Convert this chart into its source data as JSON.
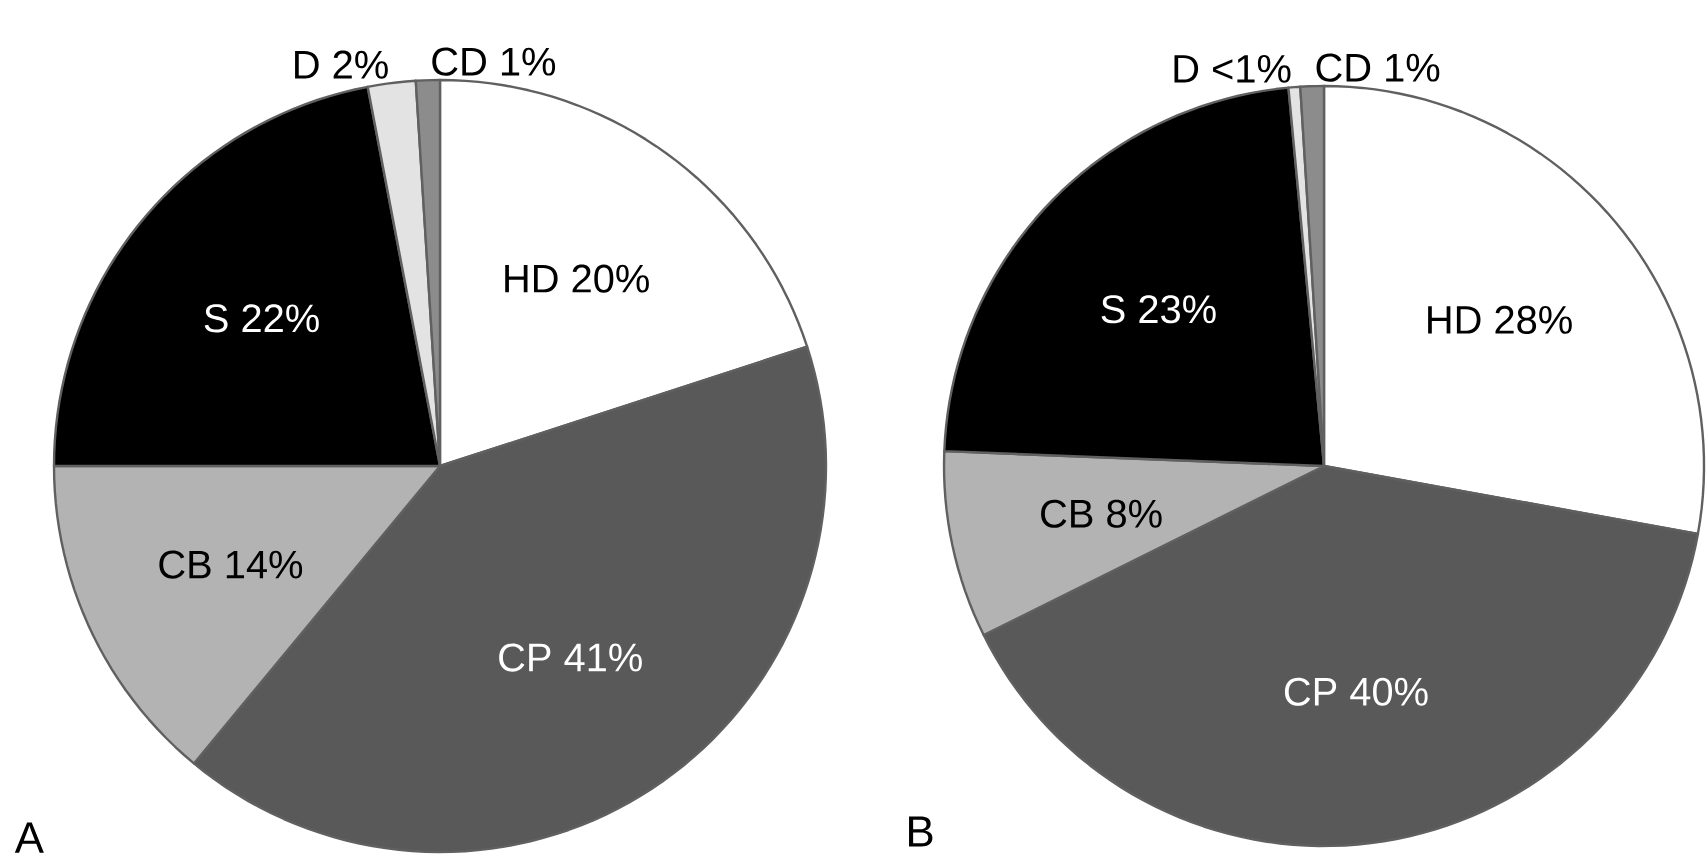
{
  "chart_data": [
    {
      "type": "pie",
      "categories": [
        "HD",
        "CP",
        "CB",
        "S",
        "D",
        "CD"
      ],
      "values": [
        20,
        41,
        14,
        22,
        2,
        1
      ],
      "value_labels": [
        "20%",
        "41%",
        "14%",
        "22%",
        "2%",
        "1%"
      ],
      "colors": [
        "#ffffff",
        "#595959",
        "#b3b3b3",
        "#000000",
        "#e3e3e3",
        "#8c8c8c"
      ],
      "annotations": [
        "A"
      ]
    },
    {
      "type": "pie",
      "categories": [
        "HD",
        "CP",
        "CB",
        "S",
        "D",
        "CD"
      ],
      "values": [
        28,
        40,
        8,
        23,
        0.5,
        1
      ],
      "value_labels": [
        "28%",
        "40%",
        "8%",
        "23%",
        "<1%",
        "1%"
      ],
      "colors": [
        "#ffffff",
        "#595959",
        "#b3b3b3",
        "#000000",
        "#e3e3e3",
        "#8c8c8c"
      ],
      "annotations": [
        "B"
      ]
    }
  ]
}
